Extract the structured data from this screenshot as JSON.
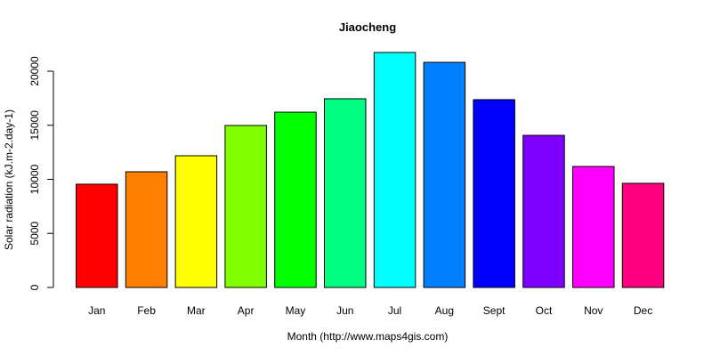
{
  "chart_data": {
    "type": "bar",
    "title": "Jiaocheng",
    "xlabel": "Month (http://www.maps4gis.com)",
    "ylabel": "Solar radiation (kJ.m-2.day-1)",
    "categories": [
      "Jan",
      "Feb",
      "Mar",
      "Apr",
      "May",
      "Jun",
      "Jul",
      "Aug",
      "Sept",
      "Oct",
      "Nov",
      "Dec"
    ],
    "values": [
      9550,
      10700,
      12180,
      14980,
      16210,
      17450,
      21730,
      20820,
      17370,
      14070,
      11190,
      9630
    ],
    "colors": [
      "#FF0000",
      "#FF8000",
      "#FFFF00",
      "#80FF00",
      "#00FF00",
      "#00FF80",
      "#00FFFF",
      "#0080FF",
      "#0000FF",
      "#8000FF",
      "#FF00FF",
      "#FF0080"
    ],
    "yticks": [
      0,
      5000,
      10000,
      15000,
      20000
    ],
    "ylim": [
      0,
      20000
    ],
    "grid": false,
    "legend": null
  }
}
